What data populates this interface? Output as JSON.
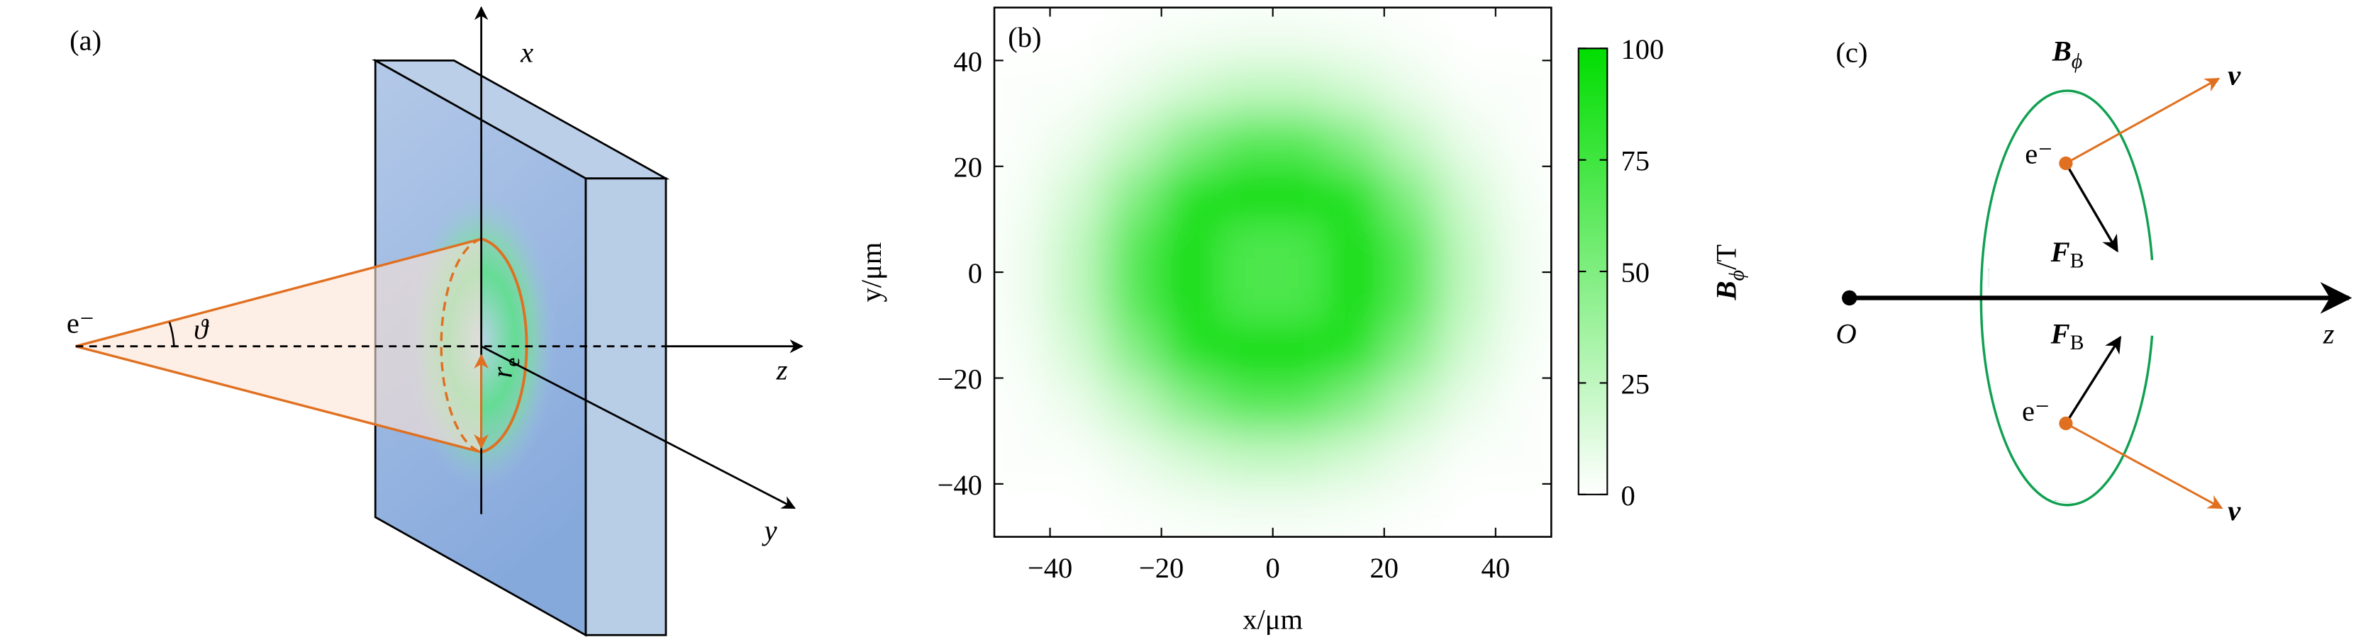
{
  "panel_a": {
    "label": "(a)",
    "axis_x": "x",
    "axis_y": "y",
    "axis_z": "z",
    "electron": "e⁻",
    "angle": "ϑ",
    "radius": {
      "main": "r",
      "sub": "e"
    }
  },
  "chart_data": {
    "type": "heatmap",
    "label": "(b)",
    "x_label": "x/μm",
    "y_label": "y/μm",
    "x": [
      -45,
      -35,
      -25,
      -15,
      -5,
      5,
      15,
      25,
      35,
      45
    ],
    "y": [
      -45,
      -35,
      -25,
      -15,
      -5,
      5,
      15,
      25,
      35,
      45
    ],
    "values": [
      [
        0,
        0,
        2,
        4,
        5,
        5,
        4,
        2,
        0,
        0
      ],
      [
        2,
        2,
        8,
        17,
        24,
        24,
        17,
        8,
        2,
        2
      ],
      [
        2,
        8,
        24,
        48,
        66,
        66,
        48,
        24,
        8,
        2
      ],
      [
        4,
        17,
        48,
        86,
        100,
        100,
        86,
        48,
        17,
        4
      ],
      [
        5,
        24,
        66,
        100,
        70,
        70,
        100,
        66,
        24,
        5
      ],
      [
        5,
        24,
        66,
        100,
        70,
        70,
        100,
        66,
        24,
        5
      ],
      [
        4,
        17,
        48,
        86,
        100,
        100,
        86,
        48,
        17,
        4
      ],
      [
        2,
        8,
        24,
        48,
        66,
        66,
        48,
        24,
        8,
        2
      ],
      [
        2,
        2,
        8,
        17,
        24,
        24,
        17,
        8,
        2,
        2
      ],
      [
        0,
        0,
        2,
        4,
        5,
        5,
        4,
        2,
        0,
        0
      ]
    ],
    "xlim": [
      -50,
      50
    ],
    "ylim": [
      -50,
      50
    ],
    "xticks": [
      {
        "value": -40,
        "label": "−40"
      },
      {
        "value": -20,
        "label": "−20"
      },
      0,
      20,
      40
    ],
    "yticks": [
      {
        "value": -40,
        "label": "−40"
      },
      {
        "value": -20,
        "label": "−20"
      },
      0,
      20,
      40
    ],
    "colorbar": {
      "label": {
        "main": "B",
        "sub": "ϕ",
        "unit": "/T"
      },
      "clim": [
        0,
        100
      ],
      "ticks": [
        0,
        25,
        50,
        75,
        100
      ],
      "colors": [
        "#ffffff",
        "#00dd00"
      ]
    }
  },
  "panel_c": {
    "label": "(c)",
    "field": {
      "main": "B",
      "sub": "ϕ"
    },
    "velocity": "v",
    "electron": "e⁻",
    "force": {
      "main": "F",
      "sub": "B"
    },
    "origin": "O",
    "axis_z": "z"
  }
}
